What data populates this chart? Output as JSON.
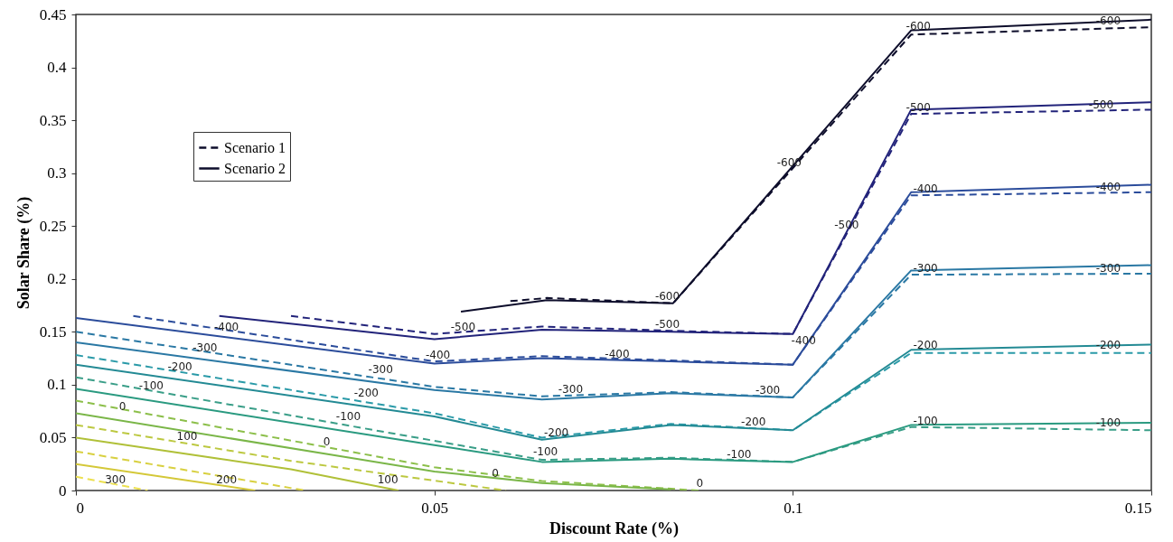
{
  "chart_data": {
    "type": "line",
    "xlabel": "Discount Rate (%)",
    "ylabel": "Solar Share (%)",
    "xlim": [
      0,
      0.15
    ],
    "ylim": [
      0,
      0.45
    ],
    "xticks": [
      0,
      0.05,
      0.1,
      0.15
    ],
    "yticks": [
      0,
      0.05,
      0.1,
      0.15,
      0.2,
      0.25,
      0.3,
      0.35,
      0.4,
      0.45
    ],
    "grid": false,
    "legend": "top left",
    "series": [
      {
        "name": "Scenario 1",
        "line_style": "dashed",
        "color": "#0d0d2b",
        "x": [
          0.0606,
          0.0657,
          0.0833,
          0.1165,
          0.15
        ],
        "values": [
          0.179,
          0.182,
          0.177,
          0.431,
          0.438
        ]
      },
      {
        "line_style": "dashed",
        "color": "#22237a",
        "x": [
          0.03,
          0.05,
          0.065,
          0.083,
          0.1,
          0.1165,
          0.15
        ],
        "values": [
          0.165,
          0.148,
          0.155,
          0.151,
          0.148,
          0.356,
          0.36
        ]
      },
      {
        "line_style": "dashed",
        "color": "#2b4c9b",
        "x": [
          0.008,
          0.05,
          0.065,
          0.083,
          0.1,
          0.1165,
          0.15
        ],
        "values": [
          0.165,
          0.122,
          0.127,
          0.123,
          0.119,
          0.279,
          0.282
        ]
      },
      {
        "line_style": "dashed",
        "color": "#2a78a4",
        "x": [
          0,
          0.05,
          0.065,
          0.083,
          0.1,
          0.1165,
          0.15
        ],
        "values": [
          0.15,
          0.098,
          0.089,
          0.093,
          0.088,
          0.204,
          0.205
        ]
      },
      {
        "line_style": "dashed",
        "color": "#2a9aa8",
        "x": [
          0,
          0.05,
          0.065,
          0.083,
          0.1,
          0.1165,
          0.15
        ],
        "values": [
          0.128,
          0.073,
          0.05,
          0.063,
          0.057,
          0.13,
          0.13
        ]
      },
      {
        "line_style": "dashed",
        "color": "#3a9e88",
        "x": [
          0,
          0.05,
          0.065,
          0.083,
          0.1,
          0.1165,
          0.15
        ],
        "values": [
          0.107,
          0.047,
          0.029,
          0.031,
          0.027,
          0.06,
          0.057
        ]
      },
      {
        "line_style": "dashed",
        "color": "#8cbf4a",
        "x": [
          0,
          0.05,
          0.065,
          0.087
        ],
        "values": [
          0.085,
          0.022,
          0.009,
          0
        ]
      },
      {
        "line_style": "dashed",
        "color": "#bcc840",
        "x": [
          0,
          0.03,
          0.06
        ],
        "values": [
          0.062,
          0.028,
          0
        ]
      },
      {
        "line_style": "dashed",
        "color": "#d8d040",
        "x": [
          0,
          0.032
        ],
        "values": [
          0.037,
          0
        ]
      },
      {
        "line_style": "dashed",
        "color": "#ece050",
        "x": [
          0,
          0.01
        ],
        "values": [
          0.013,
          0
        ]
      },
      {
        "name": "Scenario 2",
        "line_style": "solid",
        "color": "#0d0d2b",
        "x": [
          0.0537,
          0.0657,
          0.0833,
          0.1165,
          0.15
        ],
        "values": [
          0.169,
          0.18,
          0.177,
          0.435,
          0.445
        ]
      },
      {
        "line_style": "solid",
        "color": "#22237a",
        "x": [
          0.02,
          0.05,
          0.065,
          0.083,
          0.1,
          0.1165,
          0.15
        ],
        "values": [
          0.165,
          0.143,
          0.152,
          0.15,
          0.148,
          0.36,
          0.367
        ]
      },
      {
        "line_style": "solid",
        "color": "#2b4c9b",
        "x": [
          0,
          0.05,
          0.065,
          0.083,
          0.1,
          0.1165,
          0.15
        ],
        "values": [
          0.163,
          0.12,
          0.125,
          0.122,
          0.119,
          0.282,
          0.289
        ]
      },
      {
        "line_style": "solid",
        "color": "#2a78a4",
        "x": [
          0,
          0.05,
          0.065,
          0.083,
          0.1,
          0.1165,
          0.15
        ],
        "values": [
          0.14,
          0.095,
          0.086,
          0.092,
          0.088,
          0.208,
          0.213
        ]
      },
      {
        "line_style": "solid",
        "color": "#238a94",
        "x": [
          0,
          0.05,
          0.065,
          0.083,
          0.1,
          0.1165,
          0.15
        ],
        "values": [
          0.119,
          0.07,
          0.048,
          0.062,
          0.057,
          0.133,
          0.138
        ]
      },
      {
        "line_style": "solid",
        "color": "#2a9a80",
        "x": [
          0,
          0.05,
          0.065,
          0.083,
          0.1,
          0.1165,
          0.15
        ],
        "values": [
          0.096,
          0.043,
          0.027,
          0.03,
          0.027,
          0.062,
          0.064
        ]
      },
      {
        "line_style": "solid",
        "color": "#7ab648",
        "x": [
          0,
          0.05,
          0.065,
          0.083
        ],
        "values": [
          0.073,
          0.018,
          0.007,
          0.001
        ]
      },
      {
        "line_style": "solid",
        "color": "#b0c038",
        "x": [
          0,
          0.03,
          0.045
        ],
        "values": [
          0.05,
          0.02,
          0
        ]
      },
      {
        "line_style": "solid",
        "color": "#d4c838",
        "x": [
          0,
          0.025
        ],
        "values": [
          0.025,
          0
        ]
      }
    ],
    "annotations": [
      {
        "text": "-600",
        "x": 0.1175,
        "y": 0.432
      },
      {
        "text": "-600",
        "x": 0.144,
        "y": 0.437
      },
      {
        "text": "-500",
        "x": 0.1175,
        "y": 0.355
      },
      {
        "text": "-500",
        "x": 0.143,
        "y": 0.358
      },
      {
        "text": "-400",
        "x": 0.1185,
        "y": 0.278
      },
      {
        "text": "-400",
        "x": 0.144,
        "y": 0.28
      },
      {
        "text": "-300",
        "x": 0.1185,
        "y": 0.203
      },
      {
        "text": "-300",
        "x": 0.144,
        "y": 0.203
      },
      {
        "text": "-200",
        "x": 0.1185,
        "y": 0.131
      },
      {
        "text": "-200",
        "x": 0.144,
        "y": 0.131
      },
      {
        "text": "-100",
        "x": 0.1185,
        "y": 0.059
      },
      {
        "text": "-100",
        "x": 0.144,
        "y": 0.057
      },
      {
        "text": "-600",
        "x": 0.0995,
        "y": 0.303
      },
      {
        "text": "-600",
        "x": 0.0825,
        "y": 0.177
      },
      {
        "text": "-500",
        "x": 0.054,
        "y": 0.148
      },
      {
        "text": "-500",
        "x": 0.0825,
        "y": 0.15
      },
      {
        "text": "-500",
        "x": 0.1075,
        "y": 0.244
      },
      {
        "text": "-400",
        "x": 0.0505,
        "y": 0.121
      },
      {
        "text": "-400",
        "x": 0.0755,
        "y": 0.122
      },
      {
        "text": "-400",
        "x": 0.1015,
        "y": 0.135
      },
      {
        "text": "-300",
        "x": 0.069,
        "y": 0.089
      },
      {
        "text": "-300",
        "x": 0.0965,
        "y": 0.088
      },
      {
        "text": "-200",
        "x": 0.067,
        "y": 0.048
      },
      {
        "text": "-200",
        "x": 0.0945,
        "y": 0.058
      },
      {
        "text": "-100",
        "x": 0.0655,
        "y": 0.03
      },
      {
        "text": "-100",
        "x": 0.0925,
        "y": 0.027
      },
      {
        "text": "0",
        "x": 0.0585,
        "y": 0.009
      },
      {
        "text": "0",
        "x": 0.087,
        "y": 0
      },
      {
        "text": "-400",
        "x": 0.021,
        "y": 0.148
      },
      {
        "text": "-300",
        "x": 0.018,
        "y": 0.128
      },
      {
        "text": "-200",
        "x": 0.0145,
        "y": 0.11
      },
      {
        "text": "-100",
        "x": 0.0105,
        "y": 0.092
      },
      {
        "text": "0",
        "x": 0.0065,
        "y": 0.073
      },
      {
        "text": "100",
        "x": 0.0155,
        "y": 0.044
      },
      {
        "text": "300",
        "x": 0.0055,
        "y": 0.003
      },
      {
        "text": "200",
        "x": 0.021,
        "y": 0.003
      },
      {
        "text": "-300",
        "x": 0.0425,
        "y": 0.108
      },
      {
        "text": "-200",
        "x": 0.0405,
        "y": 0.085
      },
      {
        "text": "-100",
        "x": 0.038,
        "y": 0.063
      },
      {
        "text": "0",
        "x": 0.035,
        "y": 0.039
      },
      {
        "text": "100",
        "x": 0.0435,
        "y": 0.003
      }
    ]
  }
}
